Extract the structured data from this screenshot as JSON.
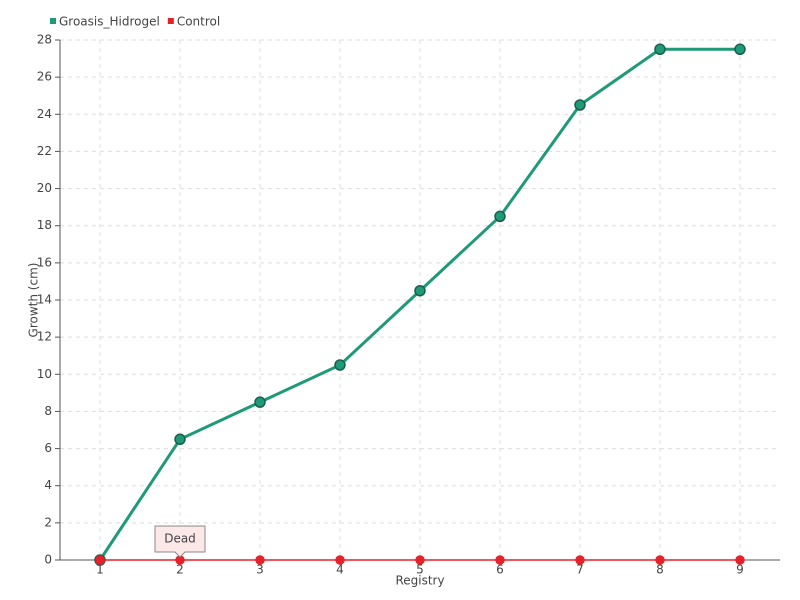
{
  "chart_data": {
    "type": "line",
    "xlabel": "Registry",
    "ylabel": "Growth (cm)",
    "categories": [
      "1",
      "2",
      "3",
      "4",
      "5",
      "6",
      "7",
      "8",
      "9"
    ],
    "series": [
      {
        "name": "Groasis_Hidrogel",
        "color": "#1f9a78",
        "values": [
          0,
          6.5,
          8.5,
          10.5,
          14.5,
          18.5,
          24.5,
          27.5,
          27.5
        ]
      },
      {
        "name": "Control",
        "color": "#e8202a",
        "values": [
          0,
          0,
          0,
          0,
          0,
          0,
          0,
          0,
          0
        ]
      }
    ],
    "annotations": [
      {
        "text": "Dead",
        "x": "2",
        "y": 0
      }
    ],
    "ylim": [
      0,
      28
    ],
    "yticks": [
      0,
      2,
      4,
      6,
      8,
      10,
      12,
      14,
      16,
      18,
      20,
      22,
      24,
      26,
      28
    ],
    "grid": true,
    "legend": "top-left"
  }
}
